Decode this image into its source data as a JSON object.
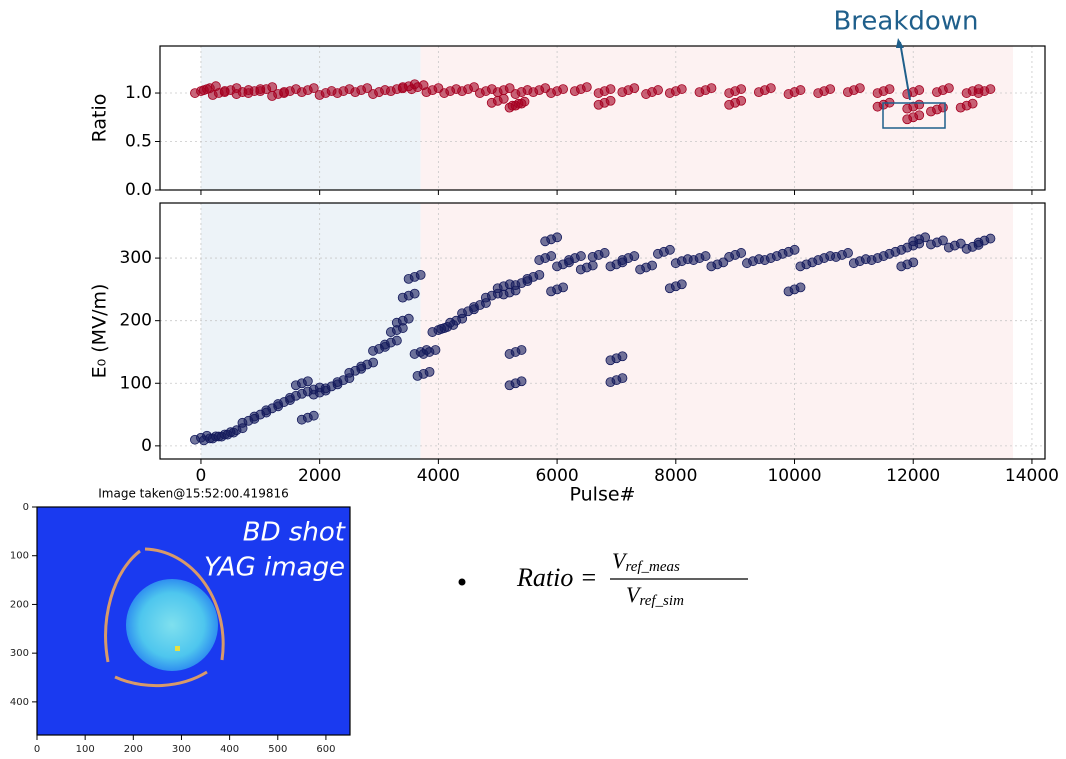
{
  "chart_data": [
    {
      "type": "scatter",
      "ylabel": "Ratio",
      "color": "#a50021",
      "xlim": [
        -690,
        14220
      ],
      "ylim": [
        0,
        1.485
      ],
      "xticks": [
        0,
        2000,
        4000,
        6000,
        8000,
        10000,
        12000,
        14000
      ],
      "yticks": [
        {
          "value": 0,
          "label": "0.0"
        },
        0.5,
        {
          "value": 1,
          "label": "1.0"
        }
      ],
      "grid": true,
      "shaded_regions": [
        {
          "x": [
            0,
            3700
          ],
          "color": "#edf3f8"
        },
        {
          "x": [
            3700,
            13680
          ],
          "color": "#fdf2f2"
        }
      ],
      "annotation": "Breakdown",
      "x": [
        0,
        150,
        300,
        500,
        700,
        900,
        1100,
        1300,
        1500,
        1800,
        2100,
        2400,
        2700,
        3000,
        3300,
        3500,
        3650,
        3900,
        4200,
        4500,
        4800,
        5100,
        5400,
        5700,
        6000,
        6400,
        6800,
        7200,
        7600,
        8000,
        8500,
        9000,
        9500,
        10000,
        10500,
        11000,
        11500,
        12000,
        12500,
        13000,
        13200,
        5000,
        5300,
        5350,
        6800,
        9000,
        11500,
        12000,
        12000,
        12400,
        12900
      ],
      "values": [
        1.02,
        1.05,
        1.0,
        1.03,
        1.01,
        1.02,
        1.04,
        0.99,
        1.02,
        1.03,
        1.0,
        1.02,
        1.03,
        1.01,
        1.04,
        1.07,
        1.06,
        1.03,
        1.02,
        1.04,
        1.02,
        1.03,
        1.01,
        1.03,
        1.02,
        1.04,
        1.02,
        1.03,
        1.01,
        1.02,
        1.03,
        1.02,
        1.03,
        1.01,
        1.02,
        1.03,
        1.02,
        1.01,
        1.03,
        1.02,
        1.02,
        0.92,
        0.87,
        0.89,
        0.9,
        0.9,
        0.88,
        0.75,
        0.86,
        0.83,
        0.87
      ]
    },
    {
      "type": "scatter",
      "ylabel": "E₀ (MV/m)",
      "xlabel": "Pulse#",
      "color": "#141a5c",
      "xlim": [
        -690,
        14220
      ],
      "ylim": [
        -21,
        388
      ],
      "xticks": [
        0,
        2000,
        4000,
        6000,
        8000,
        10000,
        12000,
        14000
      ],
      "yticks": [
        0,
        100,
        200,
        300
      ],
      "grid": true,
      "shaded_regions": [
        {
          "x": [
            0,
            3700
          ],
          "color": "#edf3f8"
        },
        {
          "x": [
            3700,
            13680
          ],
          "color": "#fdf2f2"
        }
      ],
      "x": [
        0,
        150,
        300,
        450,
        600,
        800,
        1000,
        1200,
        1400,
        1600,
        1700,
        1800,
        1900,
        2000,
        2200,
        2400,
        2600,
        2800,
        3000,
        3200,
        3300,
        3400,
        3500,
        3600,
        3700,
        3750,
        3850,
        4000,
        4150,
        4300,
        4500,
        4700,
        4900,
        5100,
        5200,
        5300,
        5300,
        5400,
        5600,
        5800,
        5900,
        6100,
        6300,
        6500,
        6700,
        7000,
        7000,
        7200,
        7500,
        7800,
        8100,
        8400,
        8700,
        9000,
        9300,
        9600,
        9900,
        10200,
        10500,
        10800,
        11100,
        11400,
        11700,
        11900,
        12100,
        12400,
        12700,
        13000,
        13200,
        6000,
        8000,
        10000,
        12000,
        7000
      ],
      "values": [
        13,
        12,
        15,
        18,
        25,
        40,
        50,
        60,
        70,
        80,
        100,
        45,
        90,
        85,
        95,
        105,
        120,
        130,
        155,
        165,
        185,
        200,
        240,
        270,
        150,
        115,
        150,
        185,
        190,
        200,
        215,
        225,
        240,
        255,
        245,
        150,
        100,
        260,
        270,
        300,
        330,
        290,
        300,
        285,
        305,
        290,
        140,
        300,
        285,
        310,
        295,
        300,
        290,
        305,
        295,
        300,
        310,
        290,
        300,
        305,
        295,
        300,
        310,
        290,
        330,
        325,
        320,
        318,
        328,
        250,
        255,
        250,
        320,
        105
      ]
    },
    {
      "type": "image",
      "title": "Image taken@15:52:00.419816",
      "caption": [
        "BD shot",
        "YAG image"
      ],
      "xlim": [
        0,
        650
      ],
      "ylim": [
        0,
        468
      ],
      "xticks": [
        0,
        100,
        200,
        300,
        400,
        500,
        600
      ],
      "yticks": [
        0,
        100,
        200,
        300,
        400
      ]
    }
  ],
  "formula": {
    "lhs": "Ratio =",
    "numerator": {
      "base": "V",
      "sub": "ref_meas"
    },
    "denominator": {
      "base": "V",
      "sub": "ref_sim"
    }
  }
}
